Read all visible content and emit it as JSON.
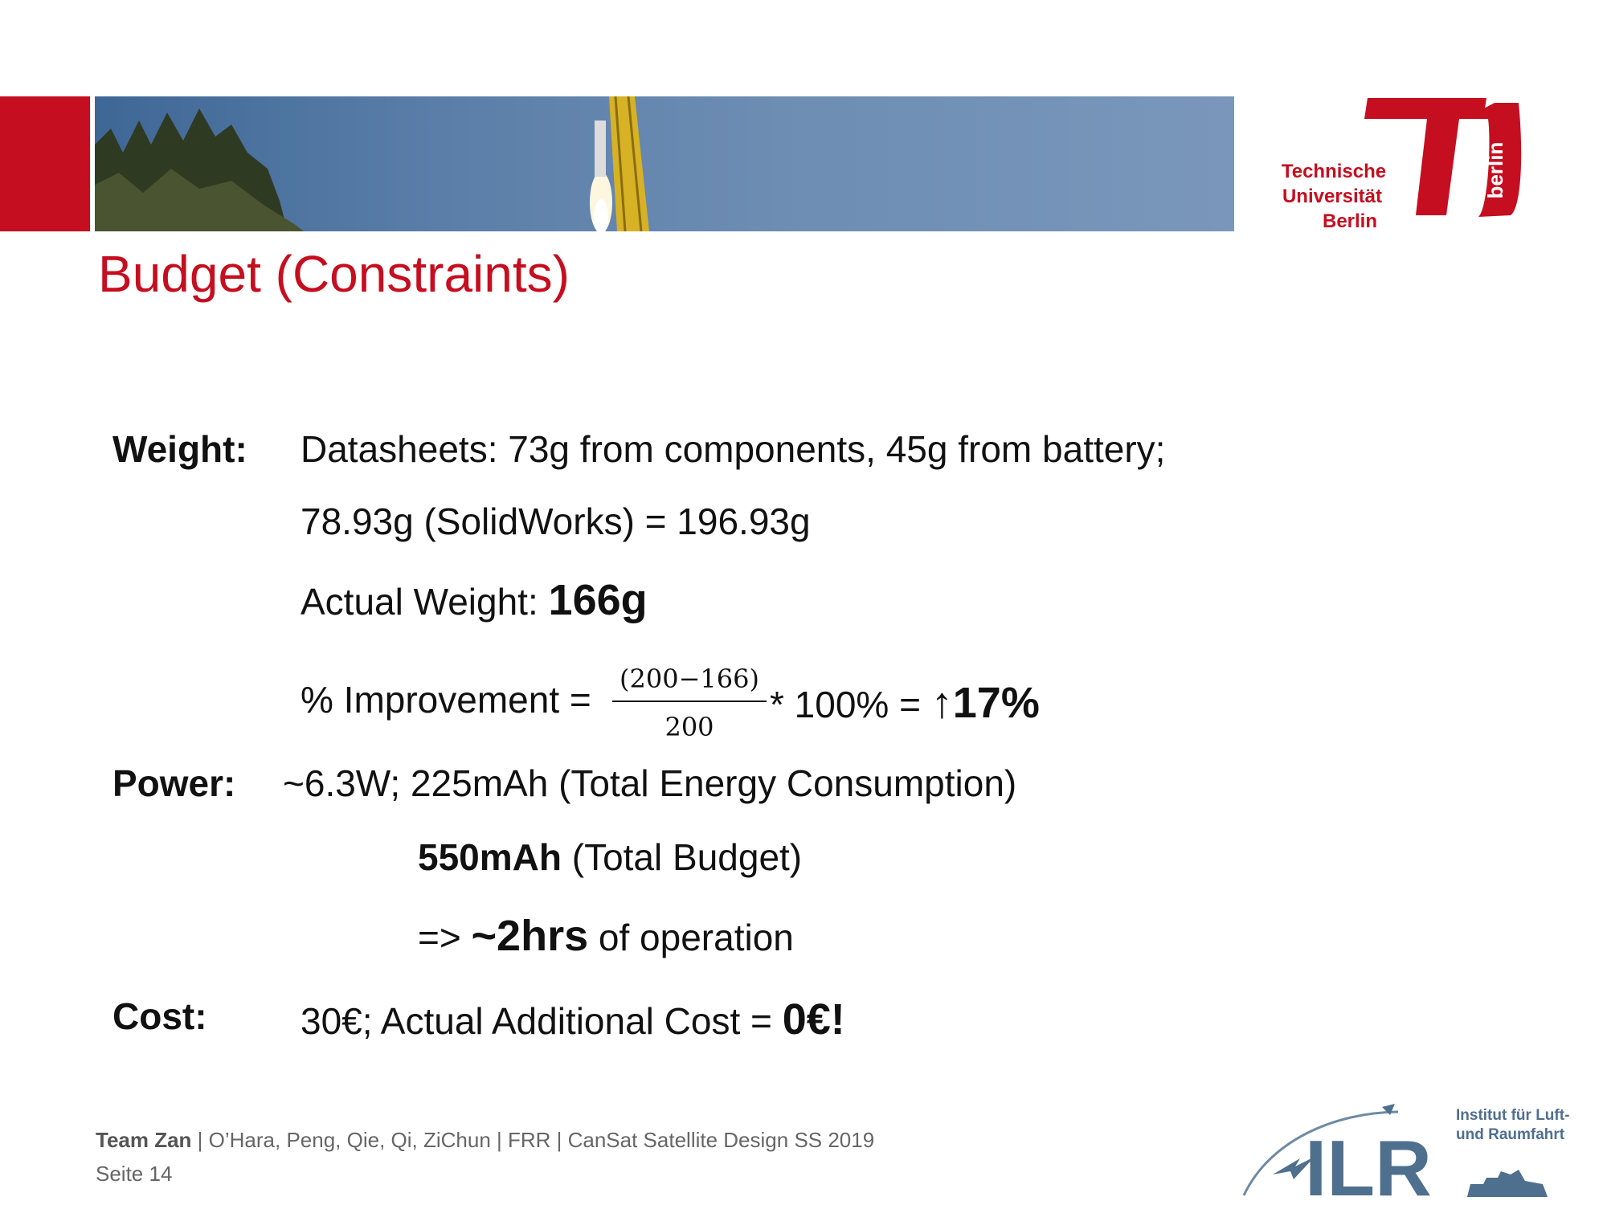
{
  "header": {
    "logo_text": [
      "Technische",
      "Universität",
      "Berlin"
    ],
    "logo_side_text": "berlin",
    "brand_color": "#c50e1f",
    "banner_image": "rocket-launch-photo"
  },
  "title": "Budget (Constraints)",
  "weight": {
    "label": "Weight:",
    "line1": "Datasheets: 73g from components, 45g from battery;",
    "line2": "78.93g (SolidWorks) = 196.93g",
    "line3_prefix": "Actual Weight: ",
    "line3_value": "166g",
    "formula_prefix": "% Improvement = ",
    "formula_numerator": "(200−166)",
    "formula_denominator": "200",
    "formula_suffix": " * 100%  = ",
    "formula_result": "↑17%"
  },
  "power": {
    "label": "Power:",
    "line1": "~6.3W;  225mAh (Total Energy Consumption)",
    "line2_value": "550mAh",
    "line2_suffix": " (Total Budget)",
    "line3_prefix": "=> ",
    "line3_value": "~2hrs",
    "line3_suffix": " of operation"
  },
  "cost": {
    "label": "Cost:",
    "text": "30€; Actual Additional Cost = ",
    "value": "0€!"
  },
  "footer": {
    "team": "Team Zan",
    "rest": " | O’Hara, Peng, Qie, Qi, ZiChun | FRR | CanSat Satellite Design SS 2019",
    "page": "Seite 14"
  },
  "ilr_logo": {
    "text": "ILR",
    "subtitle_line1": "Institut für Luft-",
    "subtitle_line2": "und Raumfahrt"
  }
}
